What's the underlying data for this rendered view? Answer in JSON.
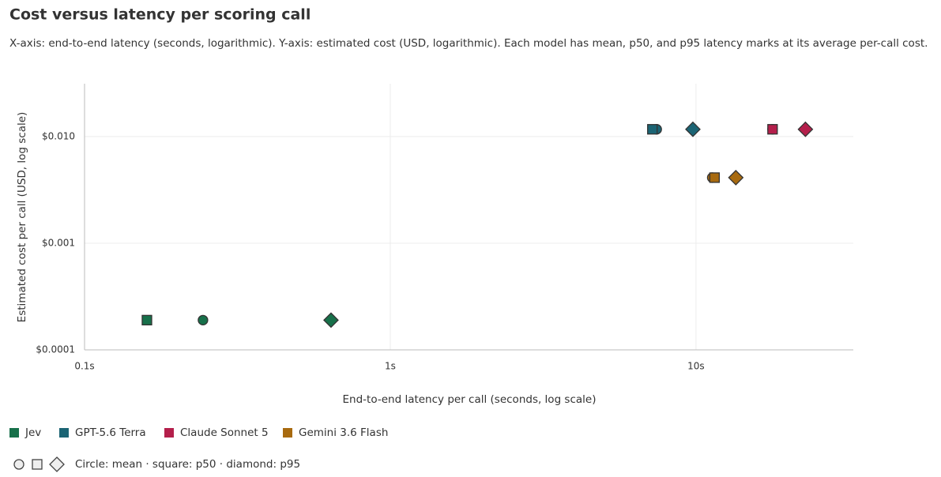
{
  "chart_data": {
    "type": "scatter",
    "title": "Cost versus latency per scoring call",
    "subtitle": "X-axis: end-to-end latency (seconds, logarithmic). Y-axis: estimated cost (USD, logarithmic). Each model has mean, p50, and p95 latency marks at its average per-call cost.",
    "x_label": "End-to-end latency per call (seconds, log scale)",
    "y_label": "Estimated cost per call (USD, log scale)",
    "x_log": true,
    "y_log": true,
    "grid": true,
    "xlim": [
      0.1,
      32.7
    ],
    "ylim": [
      0.0001,
      0.0313
    ],
    "xticks": [
      {
        "value": 0.1,
        "label": "0.1s"
      },
      {
        "value": 1,
        "label": "1s"
      },
      {
        "value": 10,
        "label": "10s"
      }
    ],
    "yticks": [
      {
        "value": 0.01,
        "label": "$0.010"
      },
      {
        "value": 0.001,
        "label": "$0.001"
      },
      {
        "value": 0.0001,
        "label": "$0.0001"
      }
    ],
    "series": [
      {
        "name": "Jev",
        "color": "#17704a",
        "cost": 0.00019,
        "mean": 0.244,
        "p50": 0.16,
        "p95": 0.64
      },
      {
        "name": "GPT-5.6 Terra",
        "color": "#1b6474",
        "cost": 0.0117,
        "mean": 7.44,
        "p50": 7.2,
        "p95": 9.77
      },
      {
        "name": "Claude Sonnet 5",
        "color": "#b41f4b",
        "cost": 0.0117,
        "mean": 17.8,
        "p50": 17.8,
        "p95": 22.8
      },
      {
        "name": "Gemini 3.6 Flash",
        "color": "#a86a0f",
        "cost": 0.00412,
        "mean": 11.3,
        "p50": 11.5,
        "p95": 13.5
      }
    ],
    "shape_legend": "Circle: mean · square: p50 · diamond: p95"
  }
}
